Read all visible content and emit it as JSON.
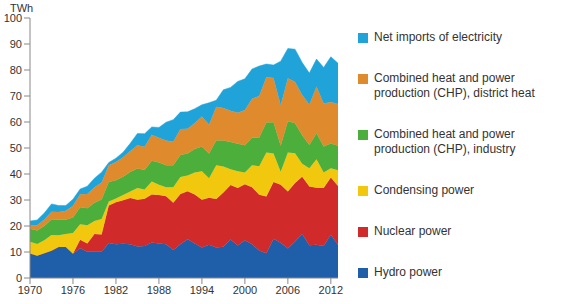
{
  "chart_data": {
    "type": "area",
    "stacked": true,
    "y_label": "TWh",
    "grid": false,
    "legend": "right",
    "x": [
      1970,
      1971,
      1972,
      1973,
      1974,
      1975,
      1976,
      1977,
      1978,
      1979,
      1980,
      1981,
      1982,
      1983,
      1984,
      1985,
      1986,
      1987,
      1988,
      1989,
      1990,
      1991,
      1992,
      1993,
      1994,
      1995,
      1996,
      1997,
      1998,
      1999,
      2000,
      2001,
      2002,
      2003,
      2004,
      2005,
      2006,
      2007,
      2008,
      2009,
      2010,
      2011,
      2012,
      2013
    ],
    "xlim": [
      1970,
      2013
    ],
    "xticks": [
      1970,
      1976,
      1982,
      1988,
      1994,
      2000,
      2006,
      2012
    ],
    "ylim": [
      0,
      100
    ],
    "yticks": [
      0,
      10,
      20,
      30,
      40,
      50,
      60,
      70,
      80,
      90,
      100
    ],
    "series": [
      {
        "name": "Hydro power",
        "color": "#1f5ea8",
        "values": [
          9.4,
          8.6,
          9.5,
          10.5,
          11.9,
          11.9,
          9.3,
          11.4,
          10.1,
          10.2,
          10.1,
          13.5,
          13.0,
          13.2,
          13.0,
          12.1,
          12.3,
          13.7,
          13.3,
          13.0,
          10.8,
          13.0,
          14.9,
          13.3,
          11.7,
          12.8,
          11.7,
          12.0,
          14.8,
          12.5,
          14.5,
          13.0,
          10.6,
          9.5,
          15.1,
          13.6,
          11.3,
          14.0,
          16.9,
          12.6,
          12.8,
          12.3,
          16.6,
          12.7
        ]
      },
      {
        "name": "Nuclear power",
        "color": "#d02a2a",
        "values": [
          0,
          0,
          0,
          0,
          0,
          0,
          0,
          3.3,
          3.2,
          6.7,
          6.6,
          14.4,
          16.1,
          16.7,
          17.8,
          18.0,
          18.2,
          18.4,
          18.6,
          18.4,
          18.1,
          19.3,
          18.5,
          18.8,
          18.4,
          18.1,
          18.7,
          20.9,
          21.0,
          22.1,
          21.6,
          21.9,
          21.4,
          21.8,
          21.8,
          22.3,
          22.0,
          22.5,
          22.0,
          22.6,
          21.9,
          22.3,
          22.1,
          22.7
        ]
      },
      {
        "name": "Condensing power",
        "color": "#f2c80f",
        "values": [
          4.5,
          4.5,
          5,
          6,
          4.5,
          5,
          8,
          6,
          7,
          5,
          6,
          1.5,
          1.5,
          2,
          2.5,
          4.5,
          3.5,
          5,
          4,
          3.5,
          6,
          6.5,
          6,
          8.5,
          11,
          7.5,
          13,
          10,
          6,
          6.5,
          4.5,
          8.5,
          11,
          17,
          11,
          5,
          15,
          11.5,
          5,
          7,
          11,
          6,
          3.5,
          6
        ]
      },
      {
        "name": "Combined heat and power production (CHP), industry",
        "color": "#4caf3c",
        "values": [
          5.0,
          5.2,
          5.5,
          6,
          6,
          5.5,
          6,
          6.5,
          6.5,
          7,
          7.5,
          7.5,
          7,
          7,
          7.5,
          7.5,
          7.5,
          8,
          8.5,
          8.5,
          8.5,
          8.5,
          8.5,
          9,
          9.5,
          9.5,
          9.5,
          10,
          10.5,
          10.5,
          10.5,
          10.5,
          11,
          11.5,
          12,
          10,
          12,
          11.5,
          11,
          9,
          10,
          10,
          9.5,
          9.5
        ]
      },
      {
        "name": "Combined heat and power production (CHP), district heat",
        "color": "#e08a2e",
        "values": [
          1.5,
          2,
          2.5,
          3,
          3,
          3.5,
          4.5,
          5,
          5.5,
          6,
          6.5,
          6.5,
          7,
          7.5,
          8,
          9,
          9,
          10,
          9.5,
          9.5,
          9,
          10,
          9.5,
          10,
          11.5,
          11,
          13,
          12.5,
          12,
          12,
          13.5,
          15,
          16,
          17.5,
          17,
          15.5,
          16.5,
          16,
          15.5,
          15.5,
          18,
          16.5,
          16,
          16
        ]
      },
      {
        "name": "Net imports of electricity",
        "color": "#1fa3d8",
        "values": [
          1.5,
          2,
          2.5,
          3,
          2.5,
          2,
          2.5,
          2,
          3,
          3.5,
          4,
          1,
          1.5,
          2,
          3,
          4.5,
          5,
          3,
          4,
          7,
          8.5,
          6.5,
          6.5,
          5.5,
          4.5,
          8.5,
          2.5,
          7,
          9,
          12,
          12,
          11.5,
          11.5,
          5,
          5,
          17,
          11.5,
          12.5,
          12.5,
          12.1,
          10.5,
          13.9,
          17.4,
          15.7
        ]
      }
    ]
  }
}
